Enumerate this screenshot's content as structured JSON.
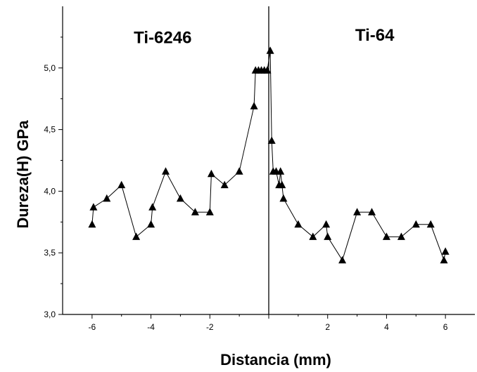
{
  "chart_data": {
    "type": "line",
    "title": "",
    "xlabel": "Distancia (mm)",
    "ylabel": "Dureza(H) GPa",
    "xlim": [
      -7,
      7
    ],
    "ylim": [
      3.0,
      5.5
    ],
    "x_ticks": [
      -6,
      -4,
      -2,
      2,
      4,
      6
    ],
    "x_tick_labels": [
      "-6",
      "-4",
      "-2",
      "2",
      "4",
      "6"
    ],
    "y_ticks": [
      3.0,
      3.5,
      4.0,
      4.5,
      5.0
    ],
    "y_tick_labels": [
      "3,0",
      "3,5",
      "4,0",
      "4,5",
      "5,0"
    ],
    "grid": false,
    "marker": "triangle",
    "interface_line_x": 0,
    "annotations": [
      {
        "text": "Ti-6246",
        "x": -3.6,
        "y": 5.2
      },
      {
        "text": "Ti-64",
        "x": 3.6,
        "y": 5.22
      }
    ],
    "series": [
      {
        "x": [
          -6.0,
          -5.95,
          -5.5,
          -5.0,
          -4.5,
          -4.0,
          -3.95,
          -3.5,
          -3.0,
          -2.5,
          -2.0,
          -1.95,
          -1.5,
          -1.0,
          -0.5,
          -0.45,
          -0.35,
          -0.25,
          -0.15,
          -0.05,
          0.05,
          0.1,
          0.15,
          0.25,
          0.35,
          0.4,
          0.45,
          0.5,
          1.0,
          1.5,
          1.95,
          2.0,
          2.5,
          3.0,
          3.5,
          4.0,
          4.5,
          5.0,
          5.5,
          5.95,
          6.0
        ],
        "y": [
          3.73,
          3.87,
          3.94,
          4.05,
          3.63,
          3.73,
          3.87,
          4.16,
          3.94,
          3.83,
          3.83,
          4.14,
          4.05,
          4.16,
          4.69,
          4.98,
          4.98,
          4.98,
          4.98,
          4.98,
          5.14,
          4.41,
          4.16,
          4.16,
          4.05,
          4.16,
          4.05,
          3.94,
          3.73,
          3.63,
          3.73,
          3.63,
          3.44,
          3.83,
          3.83,
          3.63,
          3.63,
          3.73,
          3.73,
          3.44,
          3.51
        ]
      }
    ]
  }
}
